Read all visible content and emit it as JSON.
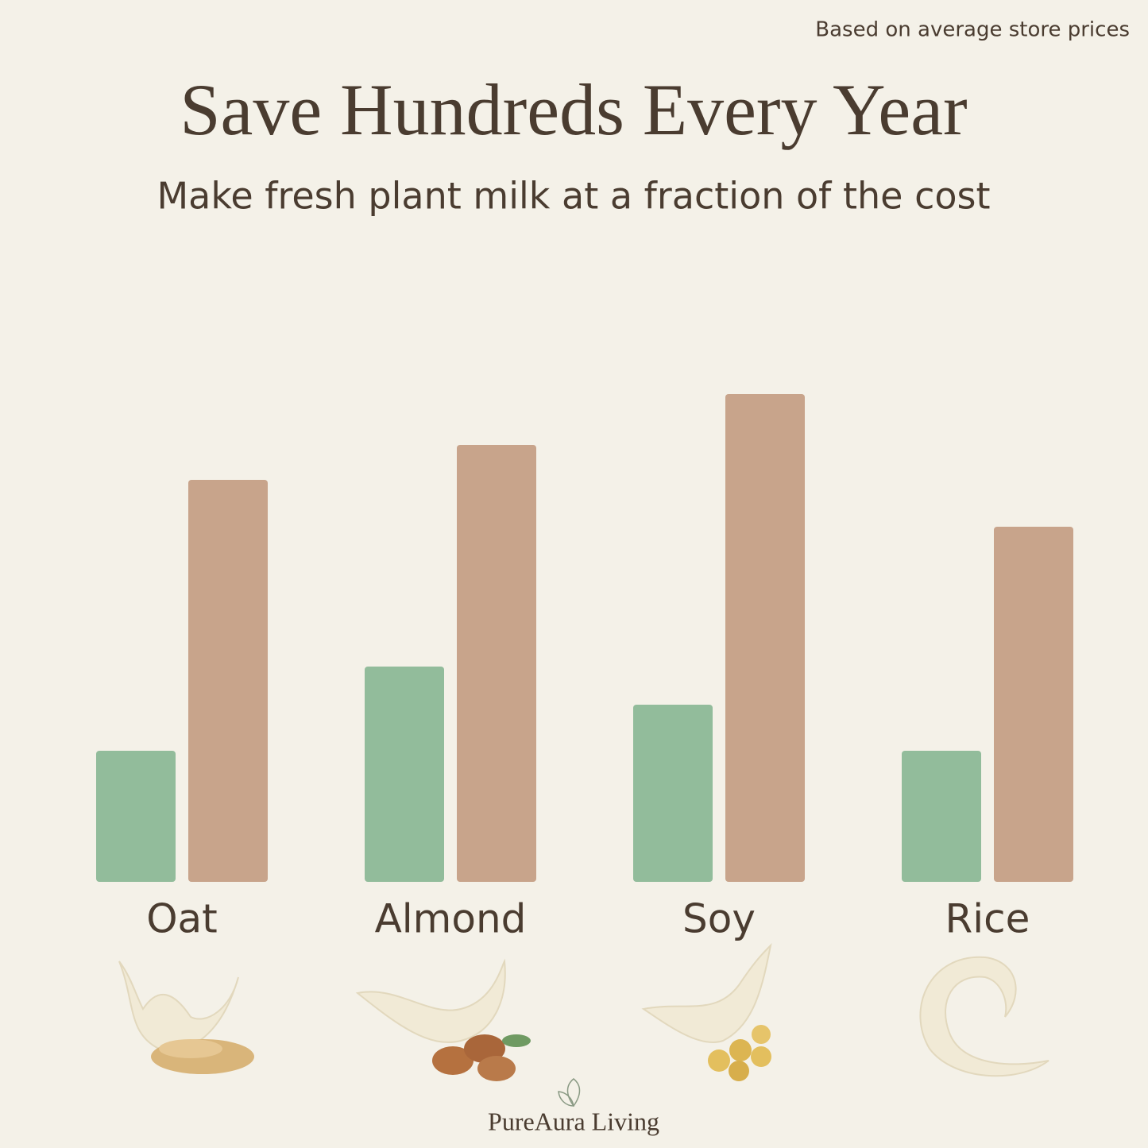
{
  "chart_data": {
    "type": "bar",
    "title": "Save Hundreds Every Year",
    "subtitle": "Make fresh plant milk at a fraction of the cost",
    "note": "Based on average store prices",
    "brand": "PureAura Living",
    "categories": [
      "Oat",
      "Almond",
      "Soy",
      "Rice"
    ],
    "series": [
      {
        "color": "#92bc9b",
        "values": [
          165,
          271,
          223,
          165
        ]
      },
      {
        "color": "#c8a48b",
        "values": [
          506,
          550,
          614,
          447
        ]
      }
    ],
    "ylim": [
      0,
      650
    ]
  }
}
